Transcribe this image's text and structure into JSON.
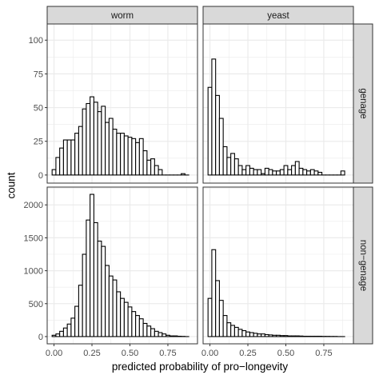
{
  "chart_data": {
    "type": "bar",
    "subtype": "faceted-histogram",
    "xlabel": "predicted probability of pro−longevity",
    "ylabel": "count",
    "bin_width": 0.025,
    "x_ticks": [
      0,
      0.25,
      0.5,
      0.75
    ],
    "x_tick_labels": [
      "0.00",
      "0.25",
      "0.50",
      "0.75"
    ],
    "xlim": [
      -0.045,
      0.945
    ],
    "column_strips": [
      "worm",
      "yeast"
    ],
    "row_strips": [
      "genage",
      "non−genage"
    ],
    "rows": [
      {
        "name": "genage",
        "ylim": [
          -6,
          112
        ],
        "y_ticks": [
          0,
          25,
          50,
          75,
          100
        ],
        "y_tick_labels": [
          "0",
          "25",
          "50",
          "75",
          "100"
        ]
      },
      {
        "name": "non−genage",
        "ylim": [
          -110,
          2270
        ],
        "y_ticks": [
          0,
          500,
          1000,
          1500,
          2000
        ],
        "y_tick_labels": [
          "0",
          "500",
          "1000",
          "1500",
          "2000"
        ]
      }
    ],
    "panels": [
      {
        "column": "worm",
        "row": "genage",
        "x": [
          0.0,
          0.025,
          0.05,
          0.075,
          0.1,
          0.125,
          0.15,
          0.175,
          0.2,
          0.225,
          0.25,
          0.275,
          0.3,
          0.325,
          0.35,
          0.375,
          0.4,
          0.425,
          0.45,
          0.475,
          0.5,
          0.525,
          0.55,
          0.575,
          0.6,
          0.625,
          0.65,
          0.675,
          0.7,
          0.725,
          0.75,
          0.775,
          0.8,
          0.825,
          0.85,
          0.875
        ],
        "counts": [
          4,
          13,
          20,
          26,
          26,
          26,
          31,
          36,
          49,
          53,
          58,
          54,
          47,
          51,
          39,
          42,
          34,
          31,
          31,
          29,
          28,
          27,
          24,
          27,
          18,
          11,
          12,
          7,
          4,
          0,
          0,
          0,
          0,
          0,
          1,
          0
        ]
      },
      {
        "column": "yeast",
        "row": "genage",
        "x": [
          0.0,
          0.025,
          0.05,
          0.075,
          0.1,
          0.125,
          0.15,
          0.175,
          0.2,
          0.225,
          0.25,
          0.275,
          0.3,
          0.325,
          0.35,
          0.375,
          0.4,
          0.425,
          0.45,
          0.475,
          0.5,
          0.525,
          0.55,
          0.575,
          0.6,
          0.625,
          0.65,
          0.675,
          0.7,
          0.725,
          0.75,
          0.775,
          0.8,
          0.825,
          0.85,
          0.875
        ],
        "counts": [
          65,
          86,
          59,
          42,
          21,
          13,
          16,
          12,
          7,
          4,
          7,
          5,
          4,
          4,
          1,
          5,
          4,
          3,
          3,
          4,
          7,
          4,
          7,
          10,
          5,
          4,
          3,
          4,
          3,
          2,
          0,
          0,
          0,
          0,
          0,
          3
        ]
      },
      {
        "column": "worm",
        "row": "non−genage",
        "x": [
          0.0,
          0.025,
          0.05,
          0.075,
          0.1,
          0.125,
          0.15,
          0.175,
          0.2,
          0.225,
          0.25,
          0.275,
          0.3,
          0.325,
          0.35,
          0.375,
          0.4,
          0.425,
          0.45,
          0.475,
          0.5,
          0.525,
          0.55,
          0.575,
          0.6,
          0.625,
          0.65,
          0.675,
          0.7,
          0.725,
          0.75,
          0.775,
          0.8,
          0.825,
          0.85,
          0.875
        ],
        "counts": [
          20,
          40,
          80,
          130,
          190,
          280,
          460,
          780,
          1250,
          1770,
          2160,
          1730,
          1450,
          1370,
          1080,
          920,
          860,
          680,
          580,
          520,
          450,
          380,
          320,
          270,
          200,
          160,
          120,
          80,
          60,
          40,
          20,
          10,
          10,
          5,
          3,
          0
        ]
      },
      {
        "column": "yeast",
        "row": "non−genage",
        "x": [
          0.0,
          0.025,
          0.05,
          0.075,
          0.1,
          0.125,
          0.15,
          0.175,
          0.2,
          0.225,
          0.25,
          0.275,
          0.3,
          0.325,
          0.35,
          0.375,
          0.4,
          0.425,
          0.45,
          0.475,
          0.5,
          0.525,
          0.55,
          0.575,
          0.6,
          0.625,
          0.65,
          0.675,
          0.7,
          0.725,
          0.75,
          0.775,
          0.8,
          0.825,
          0.85,
          0.875
        ],
        "counts": [
          580,
          1320,
          850,
          550,
          320,
          210,
          170,
          140,
          110,
          90,
          70,
          60,
          50,
          40,
          40,
          30,
          25,
          20,
          20,
          15,
          15,
          10,
          10,
          10,
          8,
          5,
          5,
          5,
          5,
          5,
          3,
          3,
          2,
          2,
          0,
          0
        ]
      }
    ],
    "grid": true,
    "theme": "light",
    "colors": {
      "panel_background": "#ffffff",
      "grid": "#ebebeb",
      "strip_background": "#d9d9d9",
      "strip_border": "#333333",
      "panel_border": "#333333",
      "bar_fill": "#ffffff",
      "bar_outline": "#000000"
    }
  }
}
